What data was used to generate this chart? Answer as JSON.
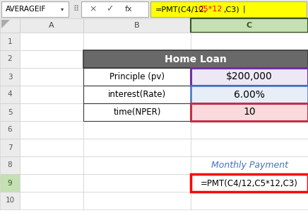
{
  "formula_bar_text": "=PMT(C4/12,C5*12,C3)",
  "formula_bar_text_parts": [
    {
      "text": "=PMT(C4/12,",
      "color": "#000000"
    },
    {
      "text": "C5*12",
      "color": "#FF0000"
    },
    {
      "text": ",C3)",
      "color": "#000000"
    }
  ],
  "formula_bar_bg": "#FFFF00",
  "formula_bar_name": "AVERAGEIF",
  "header_text": "Home Loan",
  "header_bg": "#696969",
  "header_fg": "#FFFFFF",
  "row3_label": "Principle (pv)",
  "row3_value": "$200,000",
  "row3_value_bg": "#EDE7F6",
  "row3_border_color": "#7030A0",
  "row4_label": "interest(Rate)",
  "row4_value": "6.00%",
  "row4_value_bg": "#E8EEF8",
  "row4_border_color": "#4472C4",
  "row5_label": "time(NPER)",
  "row5_value": "10",
  "row5_value_bg": "#FADADD",
  "row5_border_color": "#C0304A",
  "monthly_label": "Monthly Payment",
  "monthly_label_color": "#4472C4",
  "formula_cell_text": "=PMT(C4/12,C5*12,C3)",
  "formula_cell_bg": "#FFFFFF",
  "formula_cell_border": "#FF0000",
  "label_text_color": "#000000",
  "value_text_color": "#000000",
  "grid_color": "#C8C8C8",
  "bg_color": "#FFFFFF",
  "col_header_bg": "#EBEBEB",
  "row_num_bg": "#EBEBEB",
  "formula_bar_area_bg": "#E8E8E8",
  "col_C_header_bg": "#C5E0B3",
  "col_C_header_fg": "#375623",
  "col_C_header_border": "#375623",
  "row9_num_bg": "#C5E0B3"
}
